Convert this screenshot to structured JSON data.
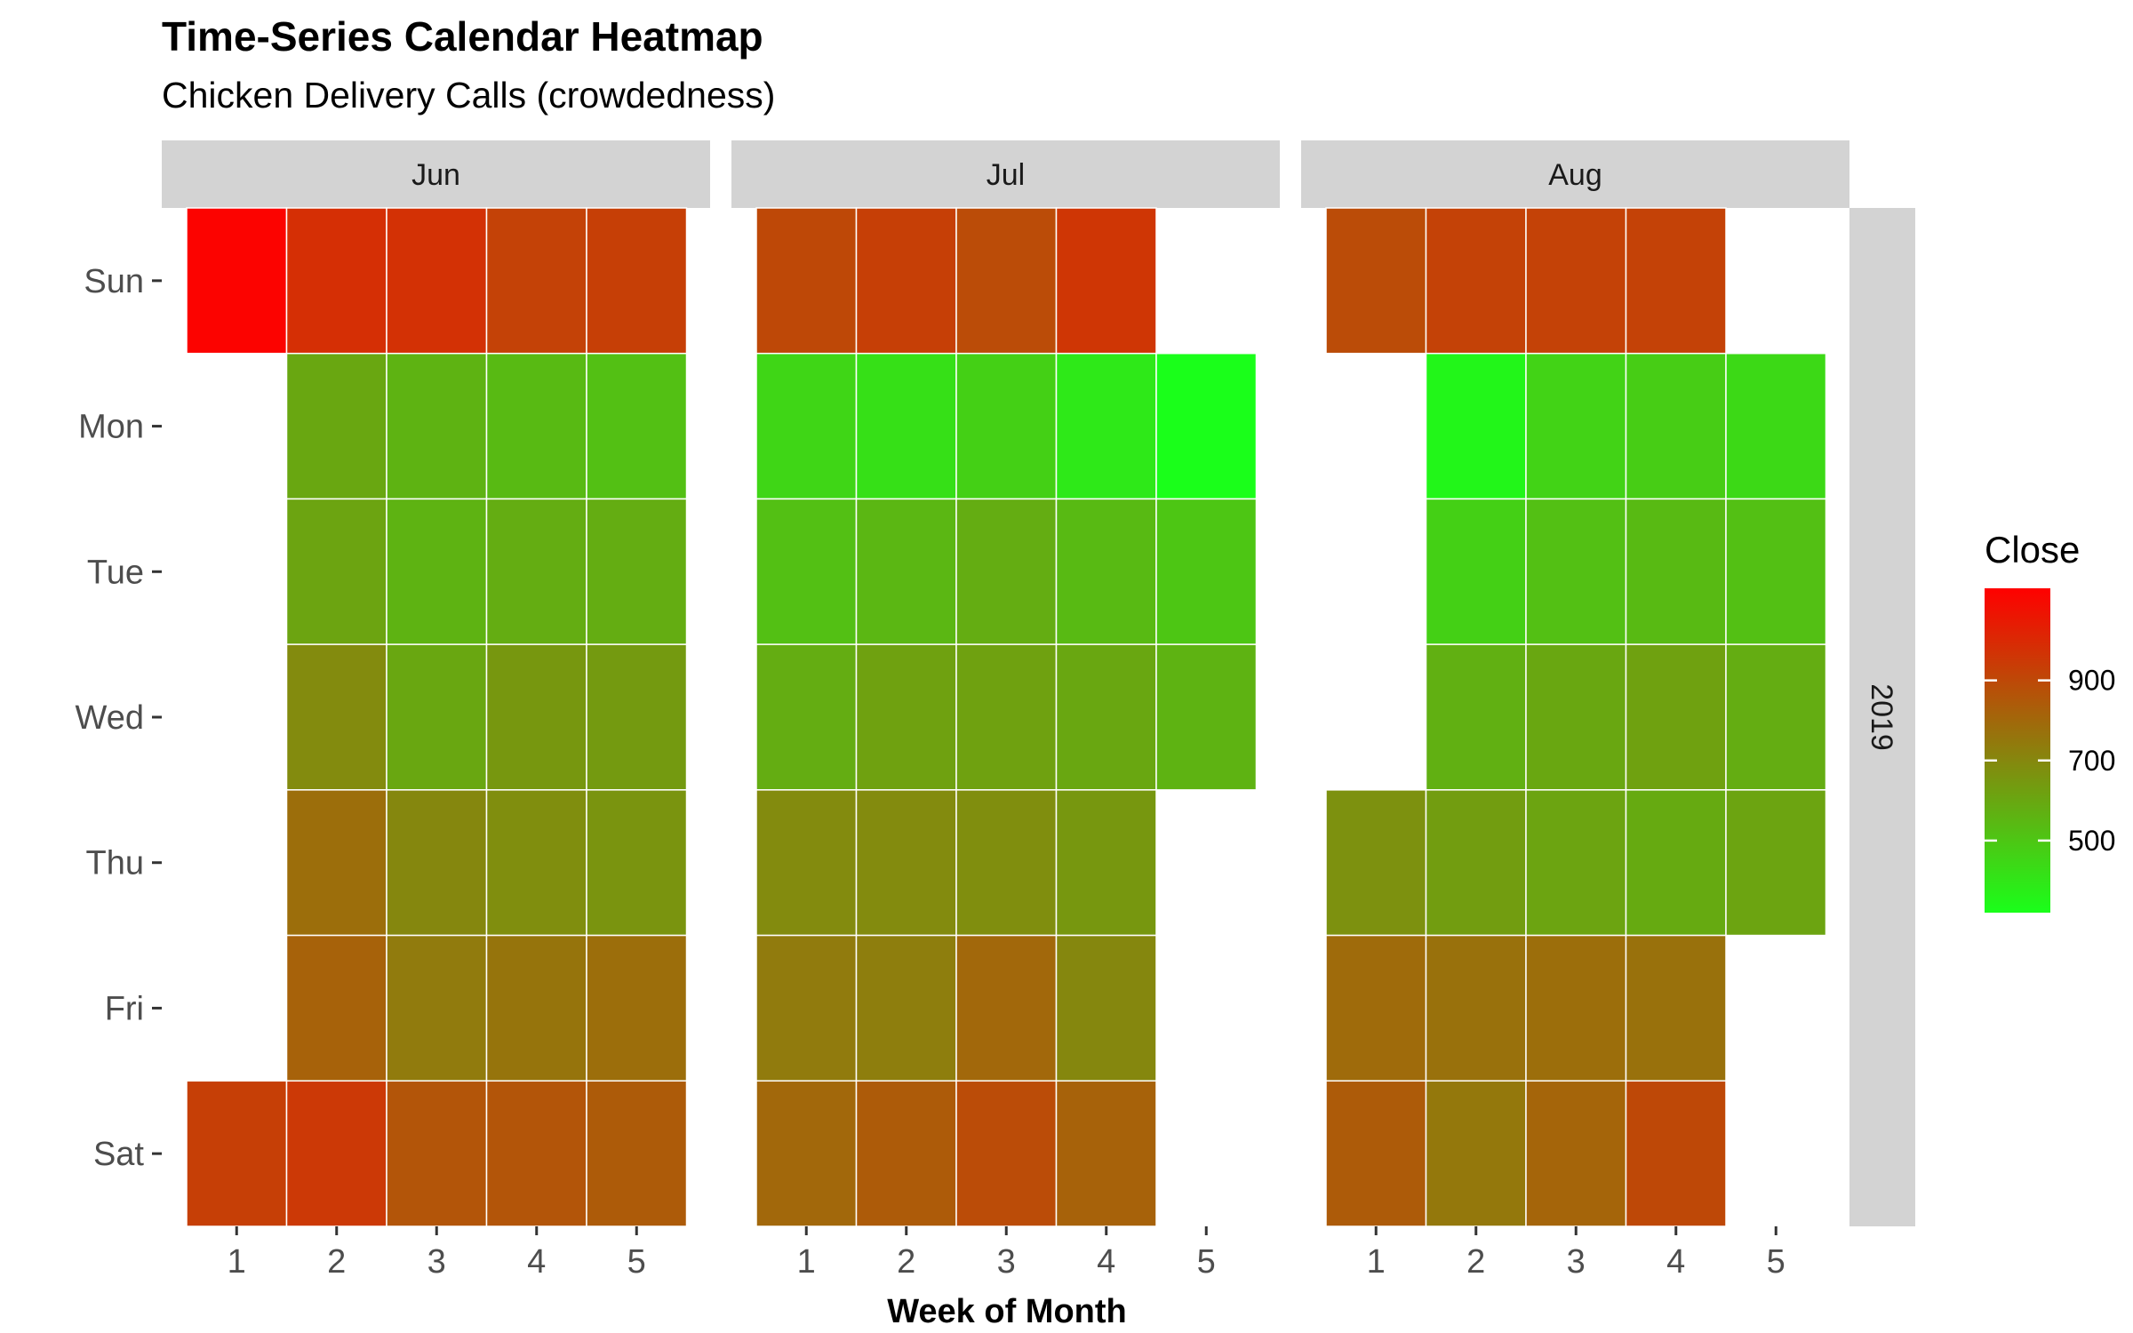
{
  "chart_data": {
    "type": "heatmap",
    "title": "Time-Series Calendar Heatmap",
    "subtitle": "Chicken Delivery Calls (crowdedness)",
    "xlabel": "Week of Month",
    "ylabel": "",
    "facet_row_label": "2019",
    "weekdays": [
      "Sun",
      "Mon",
      "Tue",
      "Wed",
      "Thu",
      "Fri",
      "Sat"
    ],
    "weeks": [
      "1",
      "2",
      "3",
      "4",
      "5"
    ],
    "legend": {
      "title": "Close",
      "ticks": [
        500,
        700,
        900
      ],
      "min": 320,
      "max": 1130,
      "low_color": "#1aff1a",
      "high_color": "#ff0000",
      "position": "right"
    },
    "panels": [
      {
        "month": "Jun",
        "values": [
          [
            1120,
            980,
            975,
            920,
            930
          ],
          [
            null,
            600,
            560,
            540,
            520
          ],
          [
            null,
            610,
            560,
            580,
            580
          ],
          [
            null,
            690,
            600,
            650,
            640
          ],
          [
            null,
            780,
            700,
            680,
            660
          ],
          [
            null,
            820,
            740,
            760,
            780
          ],
          [
            930,
            950,
            860,
            860,
            840
          ]
        ]
      },
      {
        "month": "Jul",
        "values": [
          [
            900,
            930,
            890,
            960,
            null
          ],
          [
            450,
            420,
            470,
            390,
            320
          ],
          [
            520,
            550,
            580,
            540,
            500
          ],
          [
            580,
            620,
            620,
            600,
            560
          ],
          [
            690,
            690,
            680,
            650,
            null
          ],
          [
            740,
            730,
            800,
            700,
            null
          ],
          [
            800,
            840,
            890,
            820,
            null
          ]
        ]
      },
      {
        "month": "Aug",
        "values": [
          [
            890,
            920,
            920,
            920,
            null
          ],
          [
            null,
            350,
            460,
            480,
            440
          ],
          [
            null,
            470,
            520,
            540,
            520
          ],
          [
            null,
            570,
            600,
            620,
            580
          ],
          [
            670,
            630,
            610,
            590,
            610
          ],
          [
            790,
            770,
            780,
            770,
            null
          ],
          [
            840,
            750,
            810,
            900,
            null
          ]
        ]
      }
    ]
  }
}
